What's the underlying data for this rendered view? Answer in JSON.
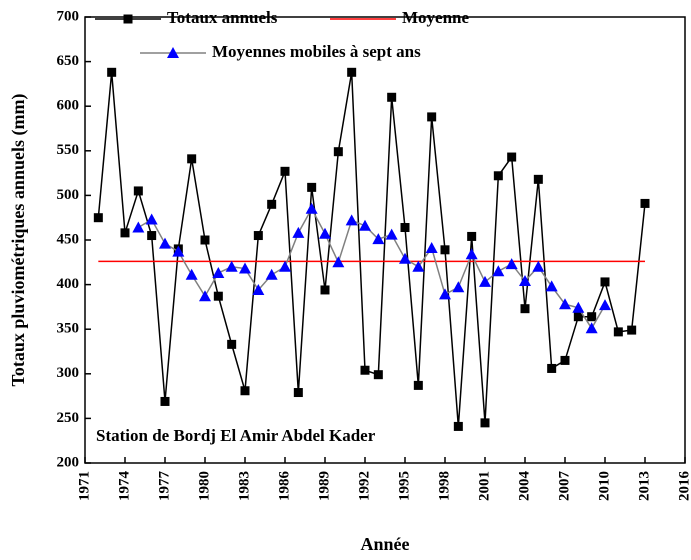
{
  "chart_data": {
    "type": "line",
    "x_label": "Année",
    "y_label": "Totaux pluviométriques annuels (mm)",
    "annotation": "Station de Bordj El Amir Abdel Kader",
    "xlim": [
      1971,
      2016
    ],
    "xticks": [
      1971,
      1974,
      1977,
      1980,
      1983,
      1986,
      1989,
      1992,
      1995,
      1998,
      2001,
      2004,
      2007,
      2010,
      2013,
      2016
    ],
    "ylim": [
      200,
      700
    ],
    "yticks": [
      200,
      250,
      300,
      350,
      400,
      450,
      500,
      550,
      600,
      650,
      700
    ],
    "series": [
      {
        "name": "Totaux annuels",
        "color": "#000000",
        "marker": "square",
        "x": [
          1972,
          1973,
          1974,
          1975,
          1976,
          1977,
          1978,
          1979,
          1980,
          1981,
          1982,
          1983,
          1984,
          1985,
          1986,
          1987,
          1988,
          1989,
          1990,
          1991,
          1992,
          1993,
          1994,
          1995,
          1996,
          1997,
          1998,
          1999,
          2000,
          2001,
          2002,
          2003,
          2004,
          2005,
          2006,
          2007,
          2008,
          2009,
          2010,
          2011,
          2012,
          2013
        ],
        "values": [
          475,
          638,
          458,
          505,
          455,
          269,
          440,
          541,
          450,
          387,
          333,
          281,
          455,
          490,
          527,
          279,
          509,
          394,
          549,
          638,
          304,
          299,
          610,
          464,
          287,
          588,
          439,
          241,
          454,
          245,
          522,
          543,
          373,
          518,
          306,
          315,
          364,
          364,
          403,
          347,
          349,
          491
        ]
      },
      {
        "name": "Moyenne",
        "color": "#ff0000",
        "marker": "none",
        "x": [
          1972,
          2013
        ],
        "values": [
          426,
          426
        ]
      },
      {
        "name": "Moyennes mobiles à sept ans",
        "color": "#808080",
        "marker": "triangle",
        "marker_color": "#0000ff",
        "x": [
          1975,
          1976,
          1977,
          1978,
          1979,
          1980,
          1981,
          1982,
          1983,
          1984,
          1985,
          1986,
          1987,
          1988,
          1989,
          1990,
          1991,
          1992,
          1993,
          1994,
          1995,
          1996,
          1997,
          1998,
          1999,
          2000,
          2001,
          2002,
          2003,
          2004,
          2005,
          2006,
          2007,
          2008,
          2009,
          2010
        ],
        "values": [
          464,
          473,
          446,
          437,
          411,
          387,
          413,
          420,
          418,
          394,
          411,
          420,
          458,
          485,
          457,
          425,
          472,
          466,
          451,
          456,
          429,
          420,
          441,
          389,
          397,
          434,
          403,
          415,
          423,
          404,
          420,
          398,
          378,
          374,
          351,
          377
        ]
      }
    ]
  }
}
